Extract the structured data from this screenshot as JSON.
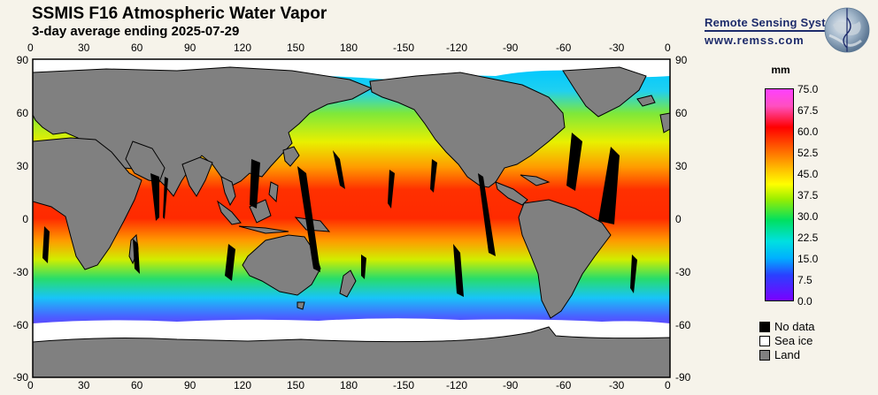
{
  "header": {
    "title": "SSMIS F16 Atmospheric Water Vapor",
    "subtitle": "3-day average ending 2025-07-29"
  },
  "brand": {
    "name": "Remote Sensing Systems",
    "url": "www.remss.com",
    "logo_icon": "globe-logo-icon"
  },
  "map": {
    "lon_ticks": [
      "0",
      "30",
      "60",
      "90",
      "120",
      "150",
      "180",
      "-150",
      "-120",
      "-90",
      "-60",
      "-30",
      "0"
    ],
    "lat_ticks": [
      "90",
      "60",
      "30",
      "0",
      "-30",
      "-60",
      "-90"
    ],
    "colors": {
      "land": "#808080",
      "sea_ice": "#ffffff",
      "no_data": "#000000"
    }
  },
  "colorbar": {
    "unit": "mm",
    "labels": [
      "75.0",
      "67.5",
      "60.0",
      "52.5",
      "45.0",
      "37.5",
      "30.0",
      "22.5",
      "15.0",
      "7.5",
      "0.0"
    ]
  },
  "legend": {
    "items": [
      {
        "label": "No data",
        "color": "#000000"
      },
      {
        "label": "Sea ice",
        "color": "#ffffff"
      },
      {
        "label": "Land",
        "color": "#808080"
      }
    ]
  }
}
